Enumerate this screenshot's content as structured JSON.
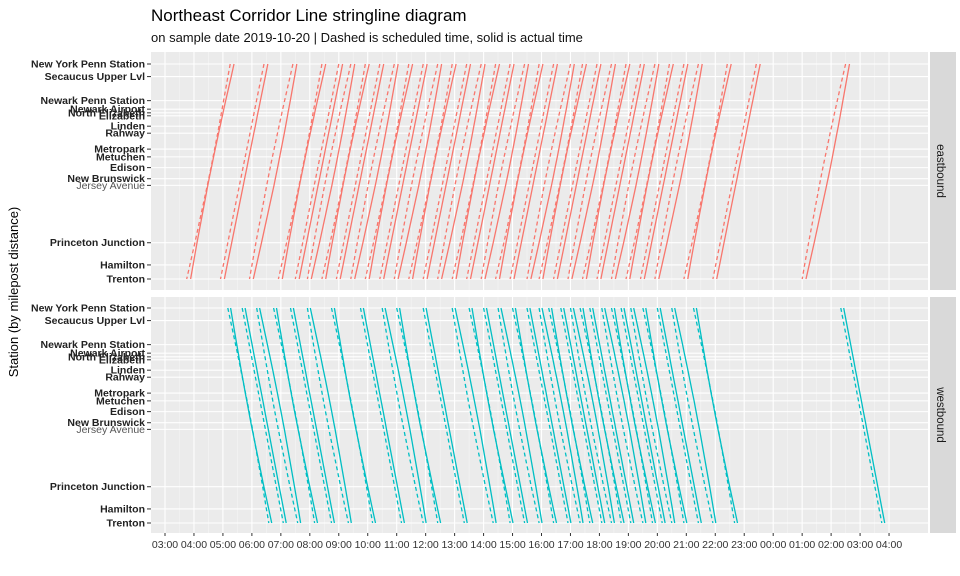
{
  "chart_data": {
    "type": "line",
    "title": "Northeast Corridor Line stringline diagram",
    "subtitle": "on sample date 2019-10-20 | Dashed is scheduled time, solid is actual time",
    "ylabel": "Station (by milepost distance)",
    "xlabel": "",
    "xlim": [
      "03:00",
      "04:00 (next day)"
    ],
    "x_ticks": [
      "03:00",
      "04:00",
      "05:00",
      "06:00",
      "07:00",
      "08:00",
      "09:00",
      "10:00",
      "11:00",
      "12:00",
      "13:00",
      "14:00",
      "15:00",
      "16:00",
      "17:00",
      "18:00",
      "19:00",
      "20:00",
      "21:00",
      "22:00",
      "23:00",
      "00:00",
      "01:00",
      "02:00",
      "03:00",
      "04:00"
    ],
    "stations": [
      {
        "name": "New York Penn Station",
        "milepost": 0
      },
      {
        "name": "Secaucus Upper Lvl",
        "milepost": 3.4
      },
      {
        "name": "Newark Penn Station",
        "milepost": 9.9
      },
      {
        "name": "Newark Airport",
        "milepost": 12.2
      },
      {
        "name": "North Elizabeth",
        "milepost": 13.2
      },
      {
        "name": "Elizabeth",
        "milepost": 14.0
      },
      {
        "name": "Linden",
        "milepost": 16.8
      },
      {
        "name": "Rahway",
        "milepost": 18.7
      },
      {
        "name": "Metropark",
        "milepost": 23.0
      },
      {
        "name": "Metuchen",
        "milepost": 25.1
      },
      {
        "name": "Edison",
        "milepost": 28.0
      },
      {
        "name": "New Brunswick",
        "milepost": 31.0
      },
      {
        "name": "Jersey Avenue",
        "milepost": 32.8
      },
      {
        "name": "Princeton Junction",
        "milepost": 48.3
      },
      {
        "name": "Hamilton",
        "milepost": 54.3
      },
      {
        "name": "Trenton",
        "milepost": 58.1
      }
    ],
    "facets": [
      "eastbound",
      "westbound"
    ],
    "series": [
      {
        "name": "eastbound",
        "color": "#F8766D",
        "departures_trenton": [
          "03:45",
          "04:55",
          "05:55",
          "06:55",
          "07:30",
          "07:55",
          "08:25",
          "08:55",
          "09:25",
          "09:55",
          "10:25",
          "10:55",
          "11:25",
          "11:55",
          "12:25",
          "12:55",
          "13:25",
          "13:55",
          "14:25",
          "14:55",
          "15:30",
          "15:55",
          "16:25",
          "16:55",
          "17:25",
          "17:55",
          "18:25",
          "18:55",
          "19:25",
          "19:55",
          "20:55",
          "21:55",
          "01:00"
        ],
        "trip_minutes": 90,
        "scheduled_offset_minutes": 8
      },
      {
        "name": "westbound",
        "color": "#00BFC4",
        "departures_ny": [
          "05:10",
          "05:40",
          "06:10",
          "06:45",
          "07:20",
          "07:55",
          "08:45",
          "09:45",
          "10:30",
          "11:00",
          "11:55",
          "12:55",
          "13:30",
          "14:00",
          "14:30",
          "15:00",
          "15:30",
          "15:55",
          "16:15",
          "16:40",
          "17:00",
          "17:20",
          "17:40",
          "18:05",
          "18:25",
          "18:45",
          "19:05",
          "19:30",
          "20:00",
          "20:30",
          "21:15",
          "02:20"
        ],
        "trip_minutes": 85,
        "scheduled_offset_minutes": 6
      }
    ]
  }
}
